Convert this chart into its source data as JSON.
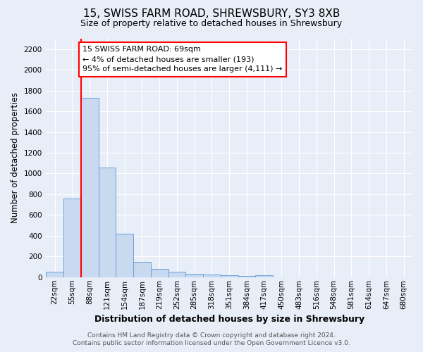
{
  "title_line1": "15, SWISS FARM ROAD, SHREWSBURY, SY3 8XB",
  "title_line2": "Size of property relative to detached houses in Shrewsbury",
  "xlabel": "Distribution of detached houses by size in Shrewsbury",
  "ylabel": "Number of detached properties",
  "bin_labels": [
    "22sqm",
    "55sqm",
    "88sqm",
    "121sqm",
    "154sqm",
    "187sqm",
    "219sqm",
    "252sqm",
    "285sqm",
    "318sqm",
    "351sqm",
    "384sqm",
    "417sqm",
    "450sqm",
    "483sqm",
    "516sqm",
    "548sqm",
    "581sqm",
    "614sqm",
    "647sqm",
    "680sqm"
  ],
  "bar_values": [
    55,
    760,
    1730,
    1060,
    420,
    150,
    80,
    50,
    35,
    28,
    18,
    12,
    18,
    0,
    0,
    0,
    0,
    0,
    0,
    0,
    0
  ],
  "bar_color": "#c9d9f0",
  "bar_edge_color": "#6a9fd8",
  "ylim": [
    0,
    2300
  ],
  "yticks": [
    0,
    200,
    400,
    600,
    800,
    1000,
    1200,
    1400,
    1600,
    1800,
    2000,
    2200
  ],
  "red_line_x": 1.5,
  "annotation_text": "15 SWISS FARM ROAD: 69sqm\n← 4% of detached houses are smaller (193)\n95% of semi-detached houses are larger (4,111) →",
  "annotation_box_color": "white",
  "annotation_box_edge_color": "red",
  "footer_line1": "Contains HM Land Registry data © Crown copyright and database right 2024.",
  "footer_line2": "Contains public sector information licensed under the Open Government Licence v3.0.",
  "bg_color": "#e8eef8",
  "grid_color": "white",
  "title_fontsize": 11,
  "subtitle_fontsize": 9,
  "ylabel_fontsize": 8.5,
  "xlabel_fontsize": 9,
  "tick_fontsize": 7.5,
  "annot_fontsize": 8,
  "footer_fontsize": 6.5
}
